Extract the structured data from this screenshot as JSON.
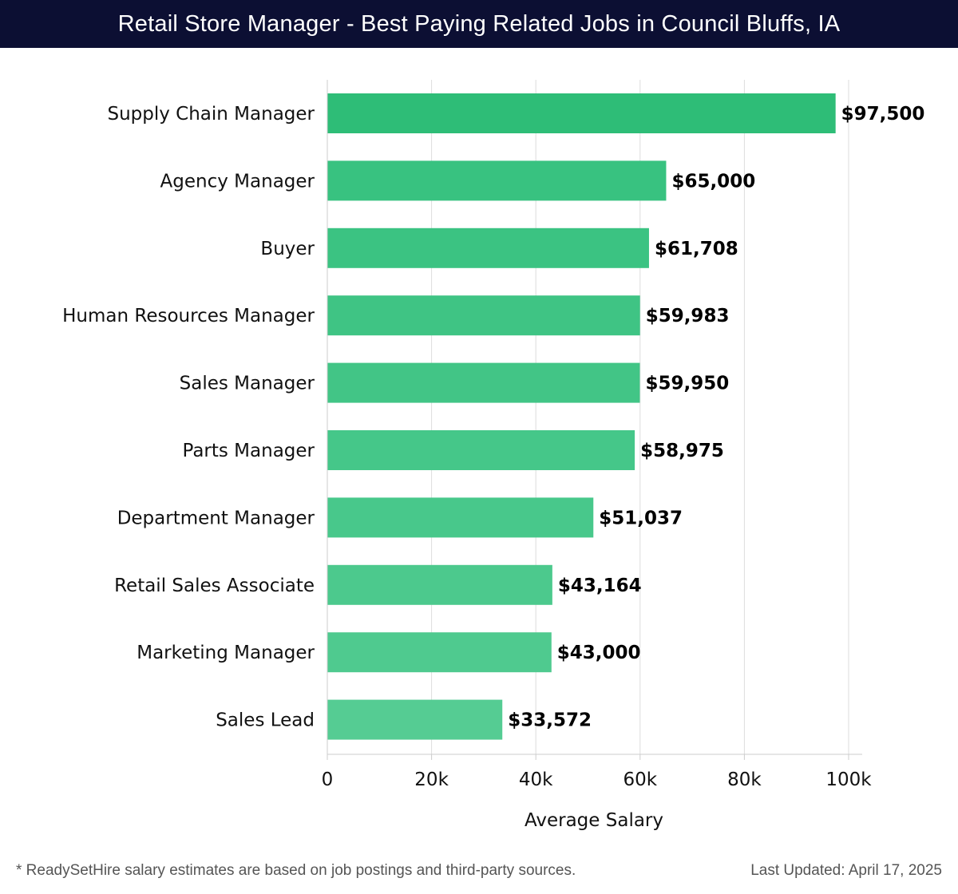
{
  "header": {
    "title": "Retail Store Manager - Best Paying Related Jobs in Council Bluffs, IA"
  },
  "chart_data": {
    "type": "bar",
    "orientation": "horizontal",
    "categories": [
      "Supply Chain Manager",
      "Agency Manager",
      "Buyer",
      "Human Resources Manager",
      "Sales Manager",
      "Parts Manager",
      "Department Manager",
      "Retail Sales Associate",
      "Marketing Manager",
      "Sales Lead"
    ],
    "values": [
      97500,
      65000,
      61708,
      59983,
      59950,
      58975,
      51037,
      43164,
      43000,
      33572
    ],
    "value_labels": [
      "$97,500",
      "$65,000",
      "$61,708",
      "$59,983",
      "$59,950",
      "$58,975",
      "$51,037",
      "$43,164",
      "$43,000",
      "$33,572"
    ],
    "xlabel": "Average Salary",
    "ylabel": "",
    "xlim": [
      0,
      100000
    ],
    "xticks": [
      0,
      20000,
      40000,
      60000,
      80000,
      100000
    ],
    "xtick_labels": [
      "0",
      "20k",
      "40k",
      "60k",
      "80k",
      "100k"
    ],
    "grid": "vertical",
    "colors": {
      "top_bar": "#2ebd77",
      "bar": "#3ec585",
      "last_bar": "#55cc93",
      "grid": "#dddddd"
    }
  },
  "footer": {
    "note": "* ReadySetHire salary estimates are based on job postings and third-party sources.",
    "updated": "Last Updated: April 17, 2025"
  }
}
